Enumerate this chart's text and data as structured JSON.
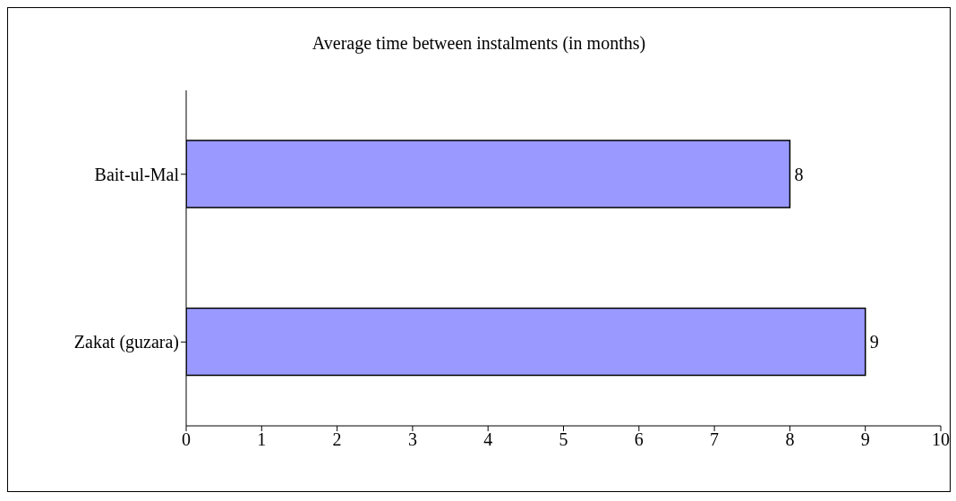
{
  "chart_data": {
    "type": "bar",
    "orientation": "horizontal",
    "title": "Average time between instalments (in months)",
    "categories": [
      "Bait-ul-Mal",
      "Zakat (guzara)"
    ],
    "values": [
      8,
      9
    ],
    "color": "#9999ff",
    "xlim": [
      0,
      10
    ],
    "xticks": [
      0,
      1,
      2,
      3,
      4,
      5,
      6,
      7,
      8,
      9,
      10
    ],
    "data_labels": true
  }
}
